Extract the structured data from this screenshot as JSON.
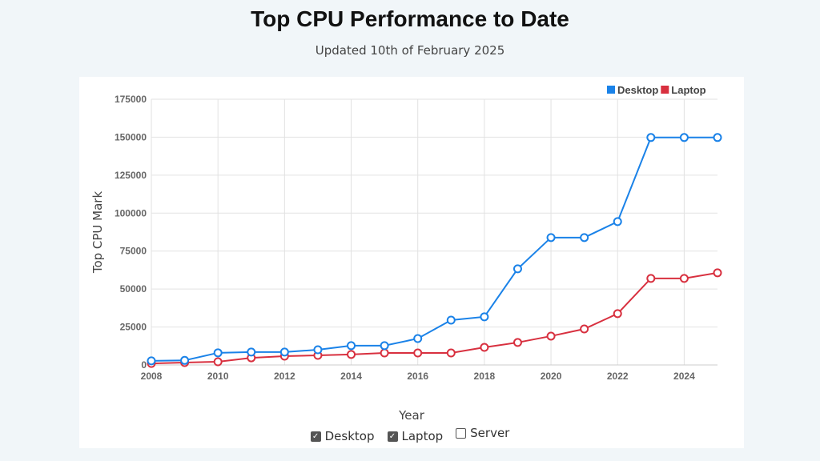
{
  "header": {
    "title": "Top CPU Performance to Date",
    "subtitle": "Updated 10th of February 2025"
  },
  "chart_data": {
    "type": "line",
    "xlabel": "Year",
    "ylabel": "Top CPU Mark",
    "xlim": [
      2008,
      2025
    ],
    "ylim": [
      0,
      175000
    ],
    "x_ticks": [
      2008,
      2010,
      2012,
      2014,
      2016,
      2018,
      2020,
      2022,
      2024
    ],
    "y_ticks": [
      0,
      25000,
      50000,
      75000,
      100000,
      125000,
      150000,
      175000
    ],
    "grid": true,
    "legend_placement": "top-right",
    "x": [
      2008,
      2009,
      2010,
      2011,
      2012,
      2013,
      2014,
      2015,
      2016,
      2017,
      2018,
      2019,
      2020,
      2021,
      2022,
      2023,
      2024,
      2025
    ],
    "series": [
      {
        "name": "Desktop",
        "color": "#1a82e8",
        "values": [
          2700,
          3000,
          8000,
          8500,
          8500,
          10000,
          12700,
          12700,
          17400,
          29500,
          31700,
          63300,
          83900,
          83900,
          94400,
          149800,
          149800,
          149800
        ]
      },
      {
        "name": "Laptop",
        "color": "#d8303f",
        "values": [
          1000,
          1600,
          2100,
          4700,
          5800,
          6300,
          6900,
          7900,
          7900,
          7900,
          11600,
          14800,
          19000,
          23700,
          33800,
          57000,
          57000,
          60700
        ]
      }
    ]
  },
  "toggles": [
    {
      "label": "Desktop",
      "checked": true
    },
    {
      "label": "Laptop",
      "checked": true
    },
    {
      "label": "Server",
      "checked": false
    }
  ]
}
